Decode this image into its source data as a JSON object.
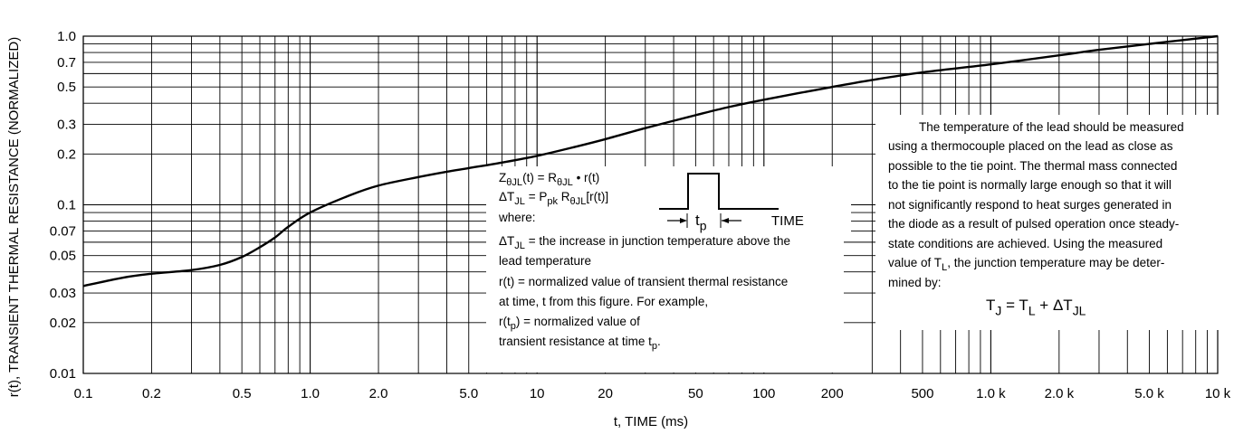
{
  "chart_data": {
    "type": "line",
    "title": "",
    "xlabel": "t, TIME (ms)",
    "ylabel": "r(t), TRANSIENT THERMAL RESISTANCE (NORMALIZED)",
    "x_scale": "log",
    "y_scale": "log",
    "xlim": [
      0.1,
      10000
    ],
    "ylim": [
      0.01,
      1.0
    ],
    "grid": true,
    "x_ticks": [
      0.1,
      0.2,
      0.5,
      1.0,
      2.0,
      5.0,
      10,
      20,
      50,
      100,
      200,
      500,
      1000,
      2000,
      5000,
      10000
    ],
    "x_tick_labels": [
      "0.1",
      "0.2",
      "0.5",
      "1.0",
      "2.0",
      "5.0",
      "10",
      "20",
      "50",
      "100",
      "200",
      "500",
      "1.0 k",
      "2.0 k",
      "5.0 k",
      "10 k"
    ],
    "y_ticks": [
      0.01,
      0.02,
      0.03,
      0.05,
      0.07,
      0.1,
      0.2,
      0.3,
      0.5,
      0.7,
      1.0
    ],
    "y_tick_labels": [
      "0.01",
      "0.02",
      "0.03",
      "0.05",
      "0.07",
      "0.1",
      "0.2",
      "0.3",
      "0.5",
      "0.7",
      "1.0"
    ],
    "series": [
      {
        "x": [
          0.1,
          0.15,
          0.2,
          0.3,
          0.4,
          0.5,
          0.6,
          0.7,
          0.8,
          1.0,
          1.5,
          2.0,
          3.0,
          4.0,
          5.0,
          7.0,
          10,
          15,
          20,
          30,
          50,
          70,
          100,
          200,
          300,
          500,
          1000,
          2000,
          3000,
          5000,
          10000
        ],
        "y": [
          0.033,
          0.037,
          0.039,
          0.041,
          0.044,
          0.049,
          0.056,
          0.064,
          0.074,
          0.09,
          0.114,
          0.13,
          0.146,
          0.157,
          0.165,
          0.178,
          0.195,
          0.222,
          0.245,
          0.285,
          0.34,
          0.38,
          0.42,
          0.5,
          0.55,
          0.61,
          0.68,
          0.77,
          0.83,
          0.9,
          1.0
        ]
      }
    ]
  },
  "formula_box": {
    "line1": [
      "Z",
      "θJL",
      "(t) = R",
      "θJL",
      " • r(t)"
    ],
    "line2": [
      "ΔT",
      "JL",
      " = P",
      "pk",
      " R",
      "θJL",
      "[r(t)]"
    ],
    "line3": "where:",
    "line4": [
      "ΔT",
      "JL",
      " = the increase in junction temperature above the"
    ],
    "line5": "lead temperature",
    "line6": "r(t) = normalized value of transient thermal resistance",
    "line7": "at time, t from this figure. For example,",
    "line8": [
      "r(t",
      "p",
      ") = normalized value of"
    ],
    "line9": [
      "transient resistance at time t",
      "p",
      "."
    ]
  },
  "pulse_diagram": {
    "tp": [
      "t",
      "p"
    ],
    "time": "TIME"
  },
  "note_box": {
    "lines": [
      "The temperature of the lead should  be measured",
      "using a thermocouple placed on the lead as close as",
      "possible to the tie point. The thermal mass connected",
      "to the tie point is normally large enough so that it will",
      "not significantly respond to heat surges generated in",
      "the diode as a result of pulsed operation once steady-",
      "state conditions are achieved. Using the measured"
    ],
    "line8": [
      "value of T",
      "L",
      ", the junction temperature may be deter-"
    ],
    "line9": "mined by:",
    "equation": [
      "T",
      "J",
      " = T",
      "L",
      " + ΔT",
      "JL"
    ]
  }
}
